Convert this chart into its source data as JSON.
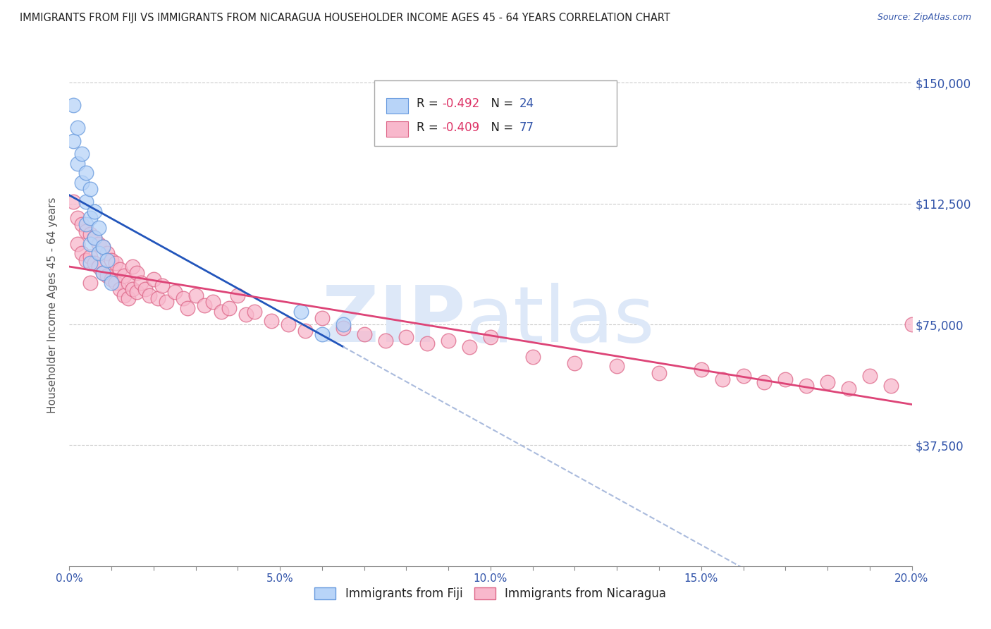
{
  "title": "IMMIGRANTS FROM FIJI VS IMMIGRANTS FROM NICARAGUA HOUSEHOLDER INCOME AGES 45 - 64 YEARS CORRELATION CHART",
  "source": "Source: ZipAtlas.com",
  "ylabel": "Householder Income Ages 45 - 64 years",
  "xlim": [
    0.0,
    0.2
  ],
  "ylim": [
    0,
    162000
  ],
  "xtick_labels": [
    "0.0%",
    "",
    "",
    "",
    "",
    "5.0%",
    "",
    "",
    "",
    "",
    "10.0%",
    "",
    "",
    "",
    "",
    "15.0%",
    "",
    "",
    "",
    "",
    "20.0%"
  ],
  "xtick_values": [
    0.0,
    0.01,
    0.02,
    0.03,
    0.04,
    0.05,
    0.06,
    0.07,
    0.08,
    0.09,
    0.1,
    0.11,
    0.12,
    0.13,
    0.14,
    0.15,
    0.16,
    0.17,
    0.18,
    0.19,
    0.2
  ],
  "ytick_labels": [
    "$37,500",
    "$75,000",
    "$112,500",
    "$150,000"
  ],
  "ytick_values": [
    37500,
    75000,
    112500,
    150000
  ],
  "fiji_color": "#b8d4f8",
  "fiji_edge_color": "#6699dd",
  "nicaragua_color": "#f8b8cc",
  "nicaragua_edge_color": "#dd6688",
  "fiji_R": -0.492,
  "fiji_N": 24,
  "nicaragua_R": -0.409,
  "nicaragua_N": 77,
  "fiji_line_color": "#2255bb",
  "fiji_line_dash_color": "#aabbdd",
  "nicaragua_line_color": "#dd4477",
  "background_color": "#ffffff",
  "grid_color": "#cccccc",
  "label_color": "#3355aa",
  "watermark_color": "#dde8f8",
  "watermark_text": "ZIP\natlas",
  "fiji_scatter_x": [
    0.001,
    0.001,
    0.002,
    0.002,
    0.003,
    0.003,
    0.004,
    0.004,
    0.004,
    0.005,
    0.005,
    0.005,
    0.005,
    0.006,
    0.006,
    0.007,
    0.007,
    0.008,
    0.008,
    0.009,
    0.01,
    0.055,
    0.06,
    0.065
  ],
  "fiji_scatter_y": [
    143000,
    132000,
    136000,
    125000,
    128000,
    119000,
    122000,
    113000,
    106000,
    117000,
    108000,
    100000,
    94000,
    110000,
    102000,
    105000,
    97000,
    99000,
    91000,
    95000,
    88000,
    79000,
    72000,
    75000
  ],
  "nicaragua_scatter_x": [
    0.001,
    0.002,
    0.002,
    0.003,
    0.003,
    0.004,
    0.004,
    0.005,
    0.005,
    0.005,
    0.006,
    0.006,
    0.007,
    0.007,
    0.008,
    0.008,
    0.009,
    0.009,
    0.01,
    0.01,
    0.011,
    0.011,
    0.012,
    0.012,
    0.013,
    0.013,
    0.014,
    0.014,
    0.015,
    0.015,
    0.016,
    0.016,
    0.017,
    0.018,
    0.019,
    0.02,
    0.021,
    0.022,
    0.023,
    0.025,
    0.027,
    0.028,
    0.03,
    0.032,
    0.034,
    0.036,
    0.038,
    0.04,
    0.042,
    0.044,
    0.048,
    0.052,
    0.056,
    0.06,
    0.065,
    0.07,
    0.075,
    0.08,
    0.085,
    0.09,
    0.095,
    0.1,
    0.11,
    0.12,
    0.13,
    0.14,
    0.15,
    0.155,
    0.16,
    0.165,
    0.17,
    0.175,
    0.18,
    0.185,
    0.19,
    0.195,
    0.2
  ],
  "nicaragua_scatter_y": [
    113000,
    108000,
    100000,
    106000,
    97000,
    104000,
    95000,
    103000,
    96000,
    88000,
    102000,
    94000,
    100000,
    93000,
    99000,
    91000,
    97000,
    90000,
    95000,
    89000,
    94000,
    88000,
    92000,
    86000,
    90000,
    84000,
    88000,
    83000,
    93000,
    86000,
    91000,
    85000,
    88000,
    86000,
    84000,
    89000,
    83000,
    87000,
    82000,
    85000,
    83000,
    80000,
    84000,
    81000,
    82000,
    79000,
    80000,
    84000,
    78000,
    79000,
    76000,
    75000,
    73000,
    77000,
    74000,
    72000,
    70000,
    71000,
    69000,
    70000,
    68000,
    71000,
    65000,
    63000,
    62000,
    60000,
    61000,
    58000,
    59000,
    57000,
    58000,
    56000,
    57000,
    55000,
    59000,
    56000,
    75000
  ]
}
